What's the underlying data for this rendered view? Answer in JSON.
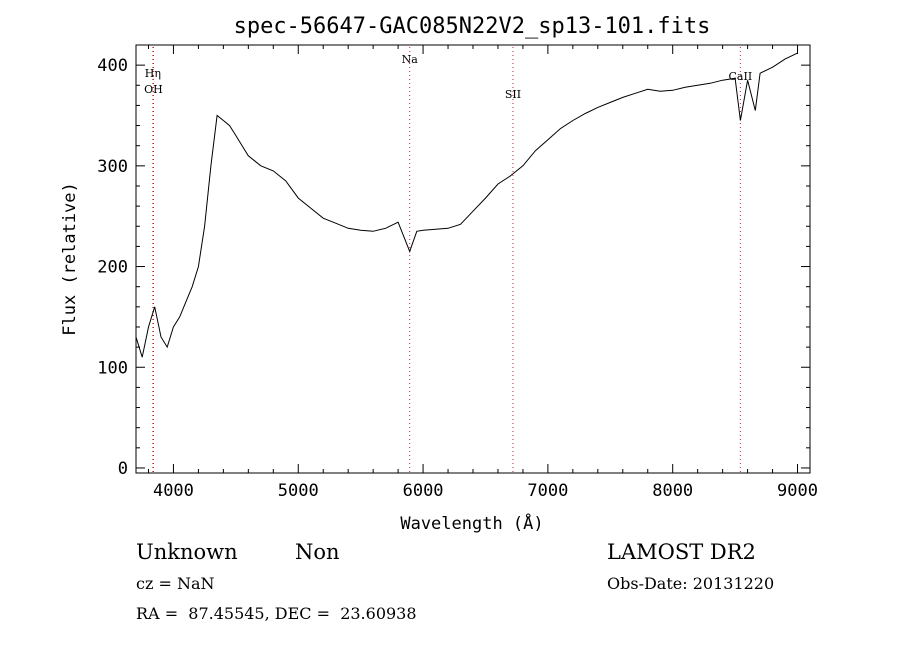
{
  "chart_data": {
    "type": "line",
    "title": "spec-56647-GAC085N22V2_sp13-101.fits",
    "xlabel": "Wavelength (Å)",
    "ylabel": "Flux (relative)",
    "xlim": [
      3700,
      9100
    ],
    "ylim": [
      -5,
      420
    ],
    "x_ticks": [
      4000,
      5000,
      6000,
      7000,
      8000,
      9000
    ],
    "x_tick_labels": [
      "4000",
      "5000",
      "6000",
      "7000",
      "8000",
      "9000"
    ],
    "y_ticks": [
      0,
      100,
      200,
      300,
      400
    ],
    "y_tick_labels": [
      "0",
      "100",
      "200",
      "300",
      "400"
    ],
    "grid": false,
    "line_color": "#000000",
    "marker_color": "#cc2222",
    "line_markers": [
      {
        "label": "OH",
        "x": 3840,
        "y_label": 88
      },
      {
        "label": "Hη",
        "x": 3835,
        "y_label": 72
      },
      {
        "label": "Na",
        "x": 5893,
        "y_label": 58
      },
      {
        "label": "SII",
        "x": 6720,
        "y_label": 93
      },
      {
        "label": "CaII",
        "x": 8542,
        "y_label": 75
      }
    ],
    "series": [
      {
        "x": [
          3700,
          3750,
          3800,
          3850,
          3900,
          3950,
          4000,
          4050,
          4100,
          4150,
          4200,
          4250,
          4300,
          4350,
          4400,
          4450,
          4500,
          4550,
          4600,
          4650,
          4700,
          4800,
          4900,
          5000,
          5100,
          5200,
          5300,
          5400,
          5500,
          5600,
          5700,
          5800,
          5893,
          5950,
          6000,
          6100,
          6200,
          6300,
          6400,
          6500,
          6600,
          6700,
          6800,
          6900,
          7000,
          7100,
          7200,
          7300,
          7400,
          7500,
          7600,
          7700,
          7800,
          7900,
          8000,
          8100,
          8200,
          8300,
          8400,
          8500,
          8542,
          8600,
          8662,
          8700,
          8800,
          8900,
          9000
        ],
        "y": [
          130,
          110,
          140,
          160,
          130,
          120,
          140,
          150,
          165,
          180,
          200,
          240,
          300,
          350,
          345,
          340,
          330,
          320,
          310,
          305,
          300,
          295,
          285,
          268,
          258,
          248,
          243,
          238,
          236,
          235,
          238,
          244,
          215,
          235,
          236,
          237,
          238,
          242,
          255,
          268,
          282,
          290,
          300,
          315,
          326,
          337,
          345,
          352,
          358,
          363,
          368,
          372,
          376,
          374,
          375,
          378,
          380,
          382,
          385,
          387,
          345,
          385,
          355,
          392,
          398,
          406,
          412
        ]
      }
    ]
  },
  "info": {
    "class_label": "Unknown",
    "subclass_label": "Non",
    "survey": "LAMOST DR2",
    "cz_text": "cz = NaN",
    "obs_date_text": "Obs-Date: 20131220",
    "coords_text": "RA =  87.45545, DEC =  23.60938"
  }
}
